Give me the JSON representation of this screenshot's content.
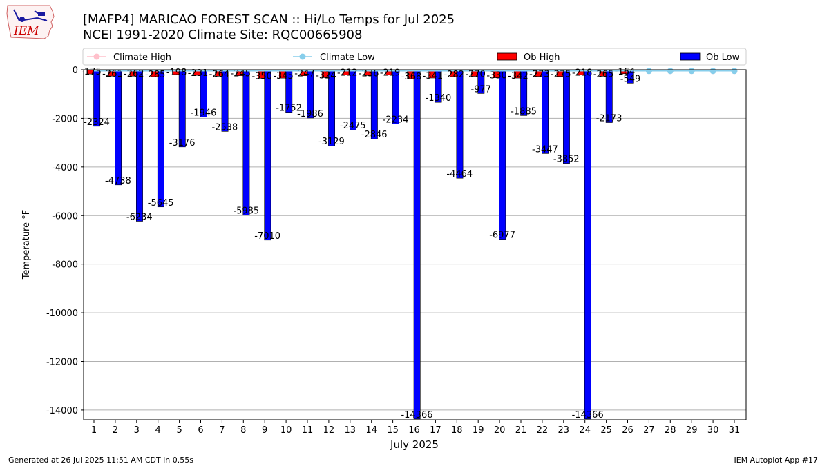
{
  "logo": {
    "text": "IEM",
    "color": "#cc0000"
  },
  "header": {
    "title_line1": "[MAFP4] MARICAO FOREST SCAN :: Hi/Lo Temps for Jul 2025",
    "title_line2": "NCEI 1991-2020 Climate Site: RQC00665908"
  },
  "footer": {
    "left": "Generated at 26 Jul 2025 11:51 AM CDT in 0.55s",
    "right": "IEM Autoplot App #17"
  },
  "chart_data": {
    "type": "bar",
    "xlabel": "July 2025",
    "ylabel": "Temperature °F",
    "ylim": [
      -14400,
      0
    ],
    "yticks": [
      0,
      -2000,
      -4000,
      -6000,
      -8000,
      -10000,
      -12000,
      -14000
    ],
    "grid": "horizontal",
    "legend_position": "top",
    "categories": [
      "1",
      "2",
      "3",
      "4",
      "5",
      "6",
      "7",
      "8",
      "9",
      "10",
      "11",
      "12",
      "13",
      "14",
      "15",
      "16",
      "17",
      "18",
      "19",
      "20",
      "21",
      "22",
      "23",
      "24",
      "25",
      "26",
      "27",
      "28",
      "29",
      "30",
      "31"
    ],
    "series": [
      {
        "name": "Climate High",
        "type": "line",
        "color": "#ffc0cb",
        "values": [
          -50,
          -50,
          -50,
          -50,
          -50,
          -50,
          -50,
          -50,
          -50,
          -50,
          -50,
          -50,
          -50,
          -50,
          -50,
          -50,
          -50,
          -50,
          -50,
          -50,
          -50,
          -50,
          -50,
          -50,
          -50,
          -50,
          -50,
          -50,
          -50,
          -50,
          -50
        ]
      },
      {
        "name": "Climate Low",
        "type": "line",
        "color": "#87ceeb",
        "values": [
          -50,
          -50,
          -50,
          -50,
          -50,
          -50,
          -50,
          -50,
          -50,
          -50,
          -50,
          -50,
          -50,
          -50,
          -50,
          -50,
          -50,
          -50,
          -50,
          -50,
          -50,
          -50,
          -50,
          -50,
          -50,
          -50,
          -50,
          -50,
          -50,
          -50,
          -50
        ]
      },
      {
        "name": "Ob High",
        "type": "bar",
        "color": "#ff0000",
        "values": [
          -175,
          -261,
          -262,
          -285,
          -198,
          -231,
          -264,
          -245,
          -350,
          -345,
          -247,
          -324,
          -212,
          -236,
          -219,
          -368,
          -341,
          -282,
          -270,
          -330,
          -342,
          -273,
          -275,
          -218,
          -265,
          -164,
          null,
          null,
          null,
          null,
          null
        ],
        "labels": [
          "-175",
          "-261",
          "-262",
          "-285",
          "-198",
          "-231",
          "-264",
          "-245",
          "-350",
          "-345",
          "-247",
          "-324",
          "-212",
          "-236",
          "-219",
          "-368",
          "-341",
          "-282",
          "-270",
          "-330",
          "-342",
          "-273",
          "-275",
          "-218",
          "-265",
          "-164",
          "",
          "",
          "",
          "",
          ""
        ]
      },
      {
        "name": "Ob Low",
        "type": "bar",
        "color": "#0000ff",
        "values": [
          -2324,
          -4738,
          -6234,
          -5645,
          -3176,
          -1946,
          -2538,
          -5985,
          -7010,
          -1752,
          -1986,
          -3129,
          -2475,
          -2846,
          -2234,
          -14366,
          -1340,
          -4464,
          -977,
          -6977,
          -1885,
          -3447,
          -3852,
          -14366,
          -2173,
          -549,
          null,
          null,
          null,
          null,
          null
        ],
        "labels": [
          "-2324",
          "-4738",
          "-6234",
          "-5645",
          "-3176",
          "-1946",
          "-2538",
          "-5985",
          "-7010",
          "-1752",
          "-1986",
          "-3129",
          "-2475",
          "-2846",
          "-2234",
          "-14366",
          "-1340",
          "-4464",
          "-977",
          "-6977",
          "-1885",
          "-3447",
          "-3852",
          "-14366",
          "-2173",
          "-549",
          "",
          "",
          "",
          "",
          ""
        ]
      }
    ]
  }
}
